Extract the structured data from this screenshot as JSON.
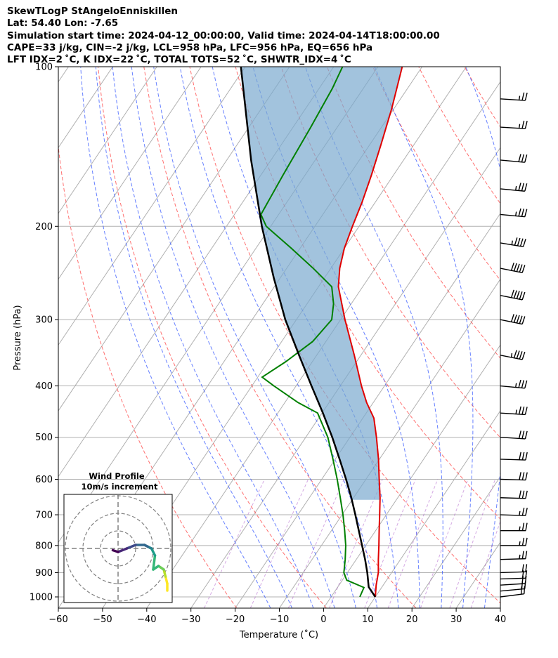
{
  "header": {
    "line1": "SkewTLogP StAngeloEnniskillen",
    "line2": "Lat: 54.40   Lon: -7.65",
    "line3": "Simulation start time: 2024-04-12_00:00:00, Valid time: 2024-04-14T18:00:00.00",
    "line4": "CAPE=33 j/kg, CIN=-2 j/kg, LCL=958 hPa, LFC=956 hPa, EQ=656 hPa",
    "line5": "LFT IDX=2 ˚C, K IDX=22 ˚C, TOTAL TOTS=52 ˚C, SHWTR_IDX=4 ˚C"
  },
  "chart_data": {
    "type": "skewt-logp",
    "xlabel": "Temperature (˚C)",
    "ylabel": "Pressure (hPa)",
    "xlim": [
      -60,
      40
    ],
    "ylim": [
      1050,
      100
    ],
    "x_ticks": [
      -60,
      -50,
      -40,
      -30,
      -20,
      -10,
      0,
      10,
      20,
      30,
      40
    ],
    "x_tick_labels": [
      "−60",
      "−50",
      "−40",
      "−30",
      "−20",
      "−10",
      "0",
      "10",
      "20",
      "30",
      "40"
    ],
    "y_ticks": [
      1000,
      900,
      800,
      700,
      600,
      500,
      400,
      300,
      200,
      100
    ],
    "y_tick_labels": [
      "1000",
      "900",
      "800",
      "700",
      "600",
      "500",
      "400",
      "300",
      "200",
      "100"
    ],
    "grid": true,
    "skew_factor": 35,
    "temperature_profile": {
      "color": "#e00000",
      "points": [
        [
          1000,
          10.0
        ],
        [
          950,
          8.4
        ],
        [
          900,
          7.0
        ],
        [
          850,
          5.0
        ],
        [
          800,
          3.0
        ],
        [
          750,
          0.8
        ],
        [
          700,
          -1.5
        ],
        [
          650,
          -4.0
        ],
        [
          600,
          -7.0
        ],
        [
          550,
          -10.2
        ],
        [
          500,
          -14.0
        ],
        [
          460,
          -17.5
        ],
        [
          430,
          -21.5
        ],
        [
          400,
          -25.2
        ],
        [
          350,
          -31.5
        ],
        [
          300,
          -39.0
        ],
        [
          260,
          -45.5
        ],
        [
          240,
          -48.0
        ],
        [
          220,
          -50.0
        ],
        [
          200,
          -51.5
        ],
        [
          180,
          -53.0
        ],
        [
          160,
          -55.0
        ],
        [
          140,
          -57.5
        ],
        [
          120,
          -60.5
        ],
        [
          100,
          -64.5
        ]
      ]
    },
    "dewpoint_profile": {
      "color": "#008000",
      "points": [
        [
          1000,
          6.5
        ],
        [
          960,
          6.0
        ],
        [
          930,
          1.0
        ],
        [
          900,
          -0.8
        ],
        [
          850,
          -2.5
        ],
        [
          800,
          -4.5
        ],
        [
          750,
          -7.0
        ],
        [
          700,
          -9.8
        ],
        [
          650,
          -13.0
        ],
        [
          600,
          -16.5
        ],
        [
          550,
          -20.5
        ],
        [
          500,
          -25.0
        ],
        [
          450,
          -31.0
        ],
        [
          430,
          -37.0
        ],
        [
          400,
          -45.0
        ],
        [
          385,
          -49.0
        ],
        [
          360,
          -46.0
        ],
        [
          330,
          -43.0
        ],
        [
          300,
          -42.0
        ],
        [
          280,
          -44.0
        ],
        [
          260,
          -47.0
        ],
        [
          240,
          -54.0
        ],
        [
          220,
          -62.0
        ],
        [
          200,
          -71.0
        ],
        [
          190,
          -74.0
        ],
        [
          160,
          -75.0
        ],
        [
          130,
          -76.0
        ],
        [
          110,
          -77.0
        ],
        [
          100,
          -78.0
        ]
      ]
    },
    "parcel_profile": {
      "color": "#000000",
      "points": [
        [
          1000,
          10.0
        ],
        [
          958,
          7.0
        ],
        [
          900,
          4.5
        ],
        [
          850,
          2.0
        ],
        [
          800,
          -0.8
        ],
        [
          750,
          -3.8
        ],
        [
          700,
          -7.0
        ],
        [
          650,
          -10.5
        ],
        [
          600,
          -14.5
        ],
        [
          550,
          -19.0
        ],
        [
          500,
          -24.0
        ],
        [
          450,
          -29.8
        ],
        [
          400,
          -36.5
        ],
        [
          350,
          -44.0
        ],
        [
          300,
          -52.5
        ],
        [
          250,
          -61.5
        ],
        [
          200,
          -72.0
        ],
        [
          150,
          -84.5
        ],
        [
          100,
          -101.0
        ]
      ]
    },
    "cape_fill_color": "#7aa9cf",
    "dry_adiabats_theta_K": [
      250,
      270,
      290,
      310,
      330,
      350,
      370,
      390,
      410,
      430,
      450,
      470,
      490
    ],
    "moist_adiabats_theta_w_C": [
      -15,
      -10,
      -5,
      0,
      5,
      10,
      15,
      20,
      25,
      30,
      35
    ],
    "mixing_ratio_lines_gkg": [
      0.4,
      1,
      2,
      4,
      7,
      10,
      16,
      24,
      32
    ],
    "wind_barbs": [
      {
        "p": 1000,
        "knots": 20,
        "dir": 250
      },
      {
        "p": 975,
        "knots": 20,
        "dir": 255
      },
      {
        "p": 950,
        "knots": 20,
        "dir": 260
      },
      {
        "p": 925,
        "knots": 20,
        "dir": 265
      },
      {
        "p": 900,
        "knots": 20,
        "dir": 265
      },
      {
        "p": 850,
        "knots": 25,
        "dir": 265
      },
      {
        "p": 800,
        "knots": 25,
        "dir": 270
      },
      {
        "p": 750,
        "knots": 25,
        "dir": 270
      },
      {
        "p": 700,
        "knots": 25,
        "dir": 275
      },
      {
        "p": 650,
        "knots": 30,
        "dir": 275
      },
      {
        "p": 600,
        "knots": 30,
        "dir": 275
      },
      {
        "p": 550,
        "knots": 30,
        "dir": 275
      },
      {
        "p": 500,
        "knots": 30,
        "dir": 280
      },
      {
        "p": 450,
        "knots": 35,
        "dir": 280
      },
      {
        "p": 400,
        "knots": 35,
        "dir": 285
      },
      {
        "p": 350,
        "knots": 45,
        "dir": 300
      },
      {
        "p": 300,
        "knots": 50,
        "dir": 300
      },
      {
        "p": 270,
        "knots": 50,
        "dir": 300
      },
      {
        "p": 240,
        "knots": 50,
        "dir": 300
      },
      {
        "p": 215,
        "knots": 45,
        "dir": 295
      },
      {
        "p": 190,
        "knots": 35,
        "dir": 285
      },
      {
        "p": 170,
        "knots": 35,
        "dir": 285
      },
      {
        "p": 150,
        "knots": 30,
        "dir": 285
      },
      {
        "p": 130,
        "knots": 25,
        "dir": 280
      },
      {
        "p": 115,
        "knots": 25,
        "dir": 280
      }
    ],
    "hodograph": {
      "title_line1": "Wind Profile",
      "title_line2": "10m/s increment",
      "rings_ms": [
        10,
        20,
        30
      ],
      "hodograph_points_ms": [
        [
          28,
          -24
        ],
        [
          28,
          -20
        ],
        [
          27,
          -16
        ],
        [
          26,
          -12
        ],
        [
          23,
          -10
        ],
        [
          20,
          -12
        ],
        [
          21,
          -4
        ],
        [
          19,
          0
        ],
        [
          17,
          1
        ],
        [
          15,
          2
        ],
        [
          10,
          2
        ],
        [
          5,
          0
        ],
        [
          0,
          -2
        ],
        [
          -3,
          -1
        ]
      ],
      "colormap": [
        "#fde725",
        "#b5de2b",
        "#6ece58",
        "#35b779",
        "#1f9e89",
        "#26828e",
        "#31688e",
        "#3e4989",
        "#482878",
        "#440154"
      ]
    }
  }
}
